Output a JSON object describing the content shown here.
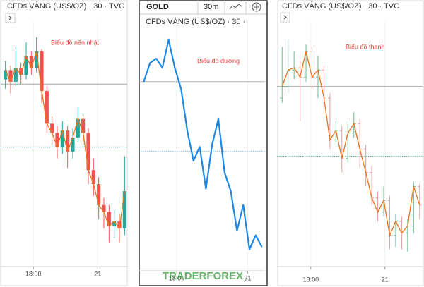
{
  "chart_data": [
    {
      "type": "candlestick",
      "title": "CFDs VÀNG (US$/OZ) · 30 · TVC",
      "annotation": "Biểu đồ nến nhật",
      "open": [
        78,
        82,
        77,
        83,
        80,
        88,
        83,
        90,
        73,
        59,
        55,
        49,
        56,
        47,
        53,
        61,
        55,
        39,
        33,
        24,
        21,
        15,
        17,
        14
      ],
      "high": [
        86,
        84,
        92,
        85,
        94,
        90,
        96,
        91,
        75,
        62,
        58,
        60,
        58,
        57,
        66,
        63,
        57,
        44,
        36,
        27,
        24,
        22,
        20,
        45
      ],
      "low": [
        74,
        72,
        75,
        76,
        78,
        80,
        81,
        68,
        55,
        50,
        44,
        46,
        40,
        44,
        51,
        50,
        33,
        28,
        18,
        14,
        8,
        10,
        8,
        11
      ],
      "close": [
        82,
        77,
        83,
        80,
        88,
        83,
        90,
        73,
        59,
        55,
        49,
        56,
        47,
        53,
        61,
        55,
        39,
        33,
        24,
        21,
        15,
        17,
        14,
        30
      ],
      "up_color": "#26a69a",
      "down_color": "#ef5350",
      "line_color": "#e8741c",
      "ylim": [
        0,
        100
      ],
      "xlim": [
        -0.5,
        23.5
      ],
      "xticks": [
        {
          "value": 5.4,
          "label": "18:00"
        },
        {
          "value": 17.8,
          "label": "21"
        }
      ],
      "ref_line": 76,
      "last_line": 49,
      "last_line_color": "#26a69a"
    },
    {
      "type": "line",
      "tabs": [
        "GOLD",
        "30m"
      ],
      "title": "CFDs VÀNG (US$/OZ) · 30 ·",
      "annotation": "Biểu đồ đường",
      "values": [
        77,
        85,
        87,
        83,
        95,
        83,
        74,
        56,
        43,
        49,
        31,
        50,
        61,
        38,
        30,
        13,
        24,
        5,
        11,
        6
      ],
      "color": "#1e88e5",
      "ylim": [
        0,
        100
      ],
      "xlim": [
        -0.5,
        19.5
      ],
      "xticks": [
        {
          "value": 5.3,
          "label": "18:00"
        },
        {
          "value": 16.7,
          "label": "21"
        }
      ],
      "ref_line": 77,
      "last_line": 47,
      "last_line_color": "#1e88e5",
      "watermark": "TRADERFOREX"
    },
    {
      "type": "ohlc",
      "title": "CFDs VÀNG (US$/OZ) · 30 · TVC",
      "annotation": "Biểu đồ thanh",
      "open": [
        70,
        75,
        82,
        83,
        79,
        90,
        79,
        82,
        70,
        52,
        56,
        44,
        55,
        59,
        48,
        38,
        27,
        21,
        26,
        11,
        17,
        12,
        15,
        32
      ],
      "high": [
        92,
        95,
        90,
        86,
        93,
        92,
        88,
        84,
        72,
        60,
        58,
        60,
        64,
        61,
        50,
        41,
        30,
        32,
        28,
        20,
        19,
        18,
        34,
        33
      ],
      "low": [
        68,
        72,
        78,
        60,
        77,
        74,
        70,
        66,
        48,
        50,
        38,
        42,
        53,
        40,
        32,
        24,
        17,
        19,
        5,
        6,
        5,
        4,
        12,
        18
      ],
      "close": [
        75,
        82,
        83,
        79,
        90,
        79,
        82,
        70,
        52,
        56,
        44,
        55,
        59,
        48,
        38,
        27,
        21,
        26,
        11,
        17,
        12,
        15,
        32,
        24
      ],
      "up_color": "#66bb8f",
      "down_color": "#e89a9a",
      "line_color": "#e8741c",
      "ylim": [
        0,
        100
      ],
      "xlim": [
        -0.5,
        23.5
      ],
      "xticks": [
        {
          "value": 4.8,
          "label": "18:00"
        },
        {
          "value": 17.2,
          "label": "21"
        }
      ],
      "ref_line": 75,
      "last_line": 45,
      "last_line_color": "#26a69a"
    }
  ]
}
